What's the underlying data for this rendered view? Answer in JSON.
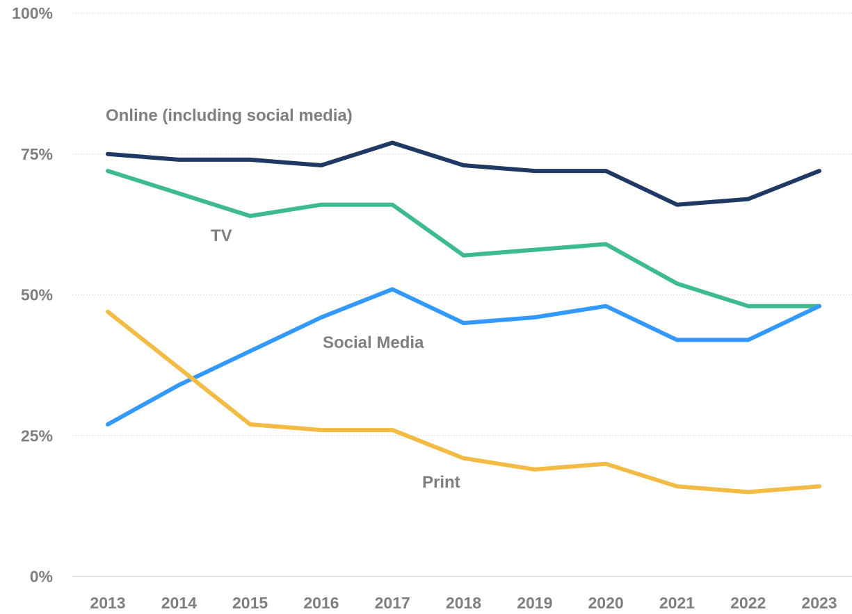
{
  "chart_data": {
    "type": "line",
    "title": "",
    "xlabel": "",
    "ylabel": "",
    "x": [
      "2013",
      "2014",
      "2015",
      "2016",
      "2017",
      "2018",
      "2019",
      "2020",
      "2021",
      "2022",
      "2023"
    ],
    "ylim": [
      0,
      100
    ],
    "yticks": [
      0,
      25,
      50,
      75,
      100
    ],
    "ytick_labels": [
      "0%",
      "25%",
      "50%",
      "75%",
      "100%"
    ],
    "grid": true,
    "legend": "inline labels",
    "series": [
      {
        "name": "Online (including social media)",
        "color": "#1f3864",
        "values": [
          75,
          74,
          74,
          73,
          77,
          73,
          72,
          72,
          66,
          67,
          72
        ]
      },
      {
        "name": "TV",
        "color": "#3dbb8f",
        "values": [
          72,
          68,
          64,
          66,
          66,
          57,
          58,
          59,
          52,
          48,
          48
        ]
      },
      {
        "name": "Social Media",
        "color": "#3399ff",
        "values": [
          27,
          34,
          40,
          46,
          51,
          45,
          46,
          48,
          42,
          42,
          48
        ]
      },
      {
        "name": "Print",
        "color": "#f2bb44",
        "values": [
          47,
          37,
          27,
          26,
          26,
          21,
          19,
          20,
          16,
          15,
          16
        ]
      }
    ]
  }
}
